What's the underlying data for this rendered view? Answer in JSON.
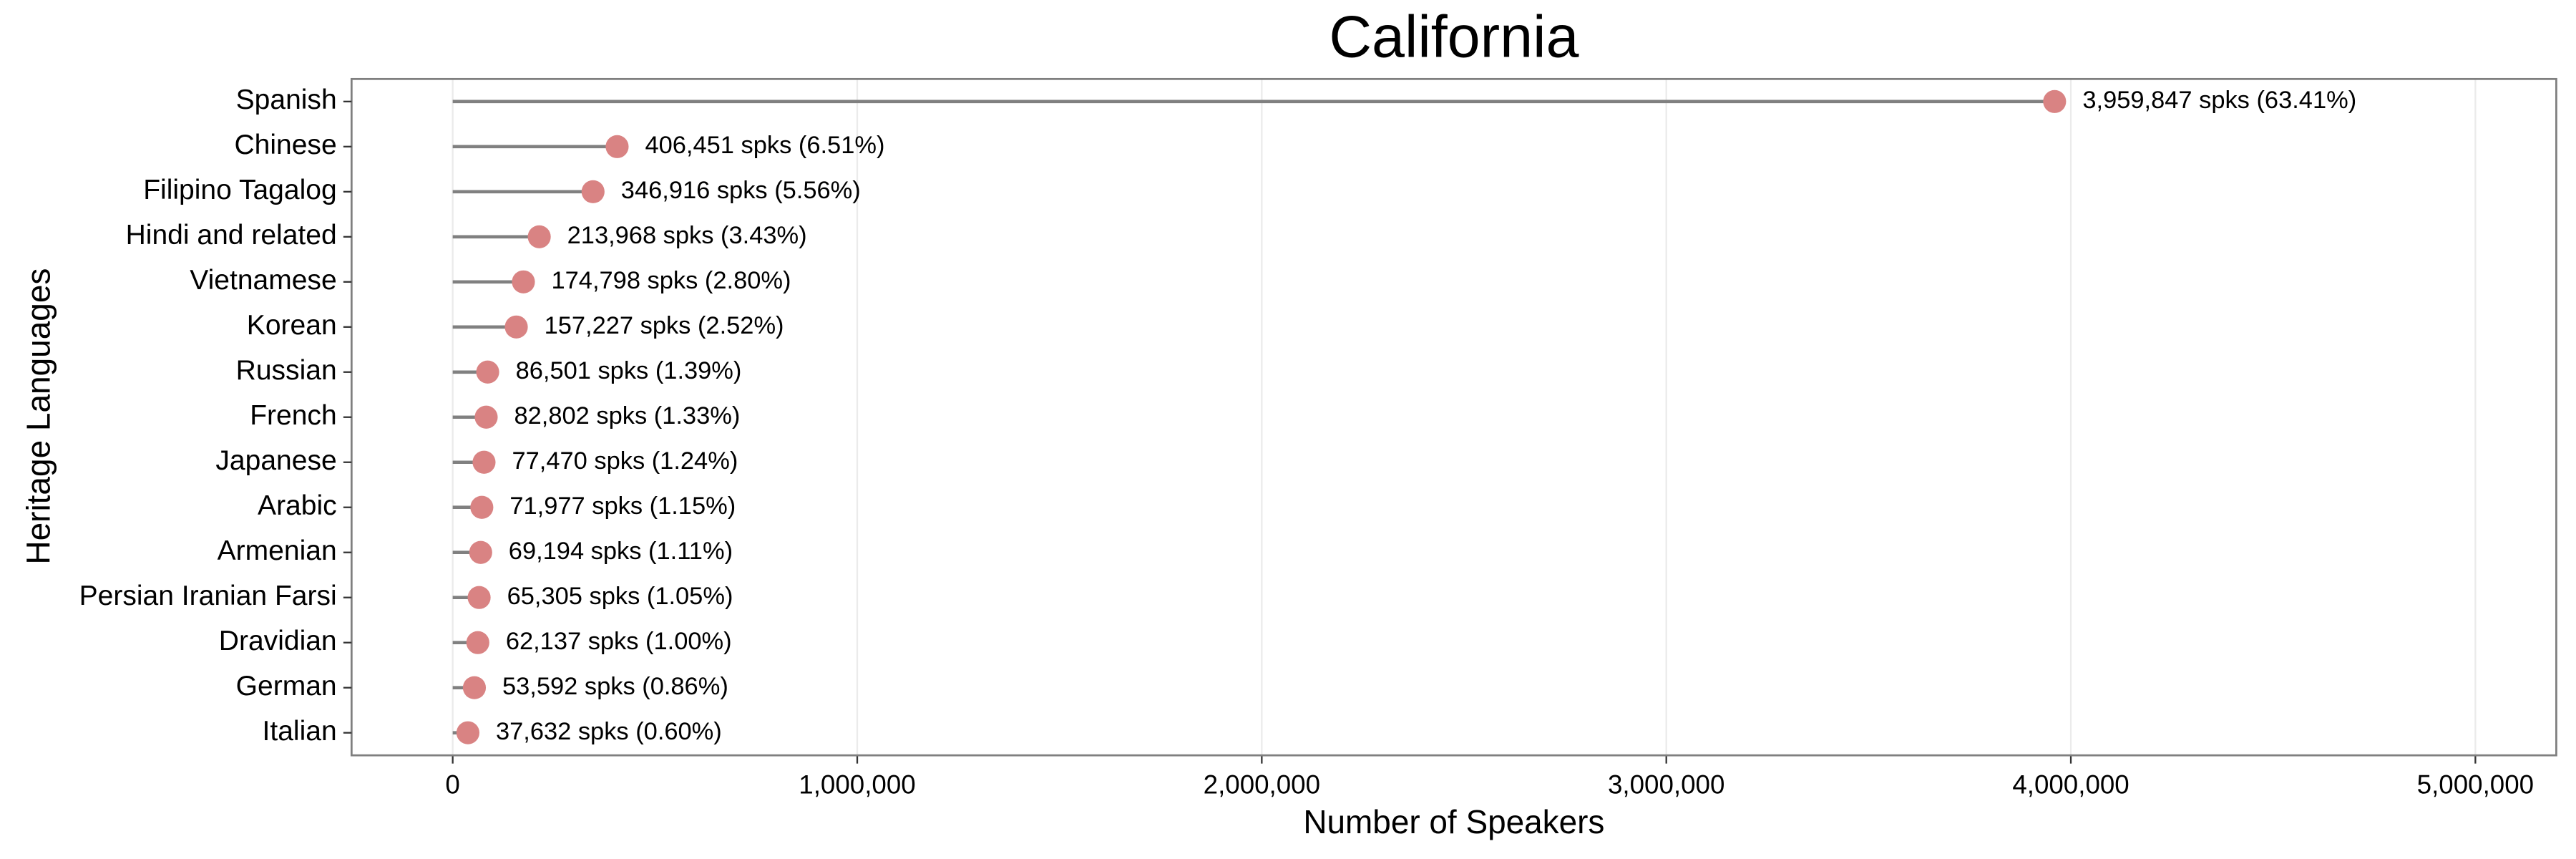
{
  "chart_data": {
    "type": "lollipop",
    "title": "California",
    "x_label": "Number of Speakers",
    "y_label": "Heritage Languages",
    "categories": [
      "Spanish",
      "Chinese",
      "Filipino Tagalog",
      "Hindi and related",
      "Vietnamese",
      "Korean",
      "Russian",
      "French",
      "Japanese",
      "Arabic",
      "Armenian",
      "Persian Iranian Farsi",
      "Dravidian",
      "German",
      "Italian"
    ],
    "values": [
      3959847,
      406451,
      346916,
      213968,
      174798,
      157227,
      86501,
      82802,
      77470,
      71977,
      69194,
      65305,
      62137,
      53592,
      37632
    ],
    "value_labels": [
      "3,959,847 spks (63.41%)",
      "406,451 spks (6.51%)",
      "346,916 spks (5.56%)",
      "213,968 spks (3.43%)",
      "174,798 spks (2.80%)",
      "157,227 spks (2.52%)",
      "86,501 spks (1.39%)",
      "82,802 spks (1.33%)",
      "77,470 spks (1.24%)",
      "71,977 spks (1.15%)",
      "69,194 spks (1.11%)",
      "65,305 spks (1.05%)",
      "62,137 spks (1.00%)",
      "53,592 spks (0.86%)",
      "37,632 spks (0.60%)"
    ],
    "color": "#d98383",
    "stem_color": "#808080",
    "xlim": [
      -250000,
      5200000
    ],
    "xticks": [
      0,
      {
        "value": 1000000,
        "label": "1,000,000"
      },
      {
        "value": 2000000,
        "label": "2,000,000"
      },
      {
        "value": 3000000,
        "label": "3,000,000"
      },
      {
        "value": 4000000,
        "label": "4,000,000"
      },
      {
        "value": 5000000,
        "label": "5,000,000"
      }
    ],
    "grid": true
  }
}
